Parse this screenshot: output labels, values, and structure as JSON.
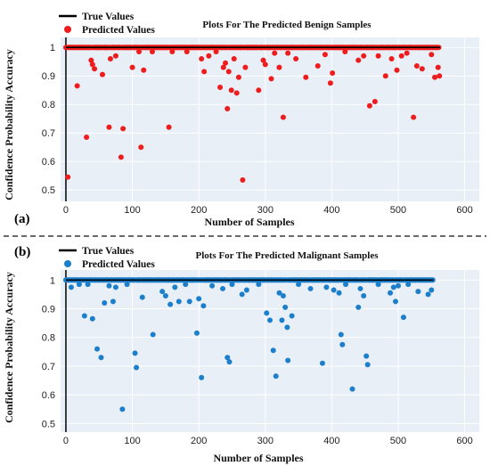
{
  "colors": {
    "benign": "#ee1c1c",
    "malignant": "#1b7fcc",
    "true_line": "#000000",
    "plot_bg": "#e9eff7",
    "grid": "#ffffff"
  },
  "chart_data": [
    {
      "type": "scatter",
      "panel_label": "(a)",
      "title": "Plots For The Predicted Benign Samples",
      "xlabel": "Number of Samples",
      "ylabel": "Confidence Probability Accuracy",
      "xlim": [
        -8,
        622
      ],
      "ylim": [
        0.46,
        1.035
      ],
      "xticks": [
        0,
        100,
        200,
        300,
        400,
        500,
        600
      ],
      "yticks": [
        0.5,
        0.6,
        0.7,
        0.8,
        0.9,
        1
      ],
      "ytick_labels": [
        "0.5",
        "0.6",
        "0.7",
        "0.8",
        "0.9",
        "1"
      ],
      "grid": true,
      "legend_position": "top-left",
      "n_samples": 563,
      "series": [
        {
          "name": "True Values",
          "kind": "line",
          "value": 1.0
        },
        {
          "name": "Predicted Values",
          "kind": "scatter",
          "outliers": [
            [
              3,
              0.545
            ],
            [
              17,
              0.865
            ],
            [
              31,
              0.685
            ],
            [
              38,
              0.955
            ],
            [
              40,
              0.94
            ],
            [
              43,
              0.925
            ],
            [
              55,
              0.905
            ],
            [
              65,
              0.72
            ],
            [
              67,
              0.96
            ],
            [
              75,
              0.97
            ],
            [
              83,
              0.615
            ],
            [
              86,
              0.715
            ],
            [
              100,
              0.93
            ],
            [
              110,
              0.985
            ],
            [
              113,
              0.65
            ],
            [
              117,
              0.92
            ],
            [
              130,
              0.985
            ],
            [
              155,
              0.72
            ],
            [
              160,
              0.985
            ],
            [
              182,
              0.985
            ],
            [
              204,
              0.96
            ],
            [
              208,
              0.915
            ],
            [
              215,
              0.97
            ],
            [
              226,
              0.985
            ],
            [
              232,
              0.86
            ],
            [
              237,
              0.93
            ],
            [
              240,
              0.945
            ],
            [
              243,
              0.785
            ],
            [
              245,
              0.915
            ],
            [
              249,
              0.85
            ],
            [
              253,
              0.96
            ],
            [
              257,
              0.84
            ],
            [
              260,
              0.895
            ],
            [
              266,
              0.535
            ],
            [
              270,
              0.93
            ],
            [
              290,
              0.85
            ],
            [
              297,
              0.955
            ],
            [
              300,
              0.94
            ],
            [
              309,
              0.89
            ],
            [
              314,
              0.98
            ],
            [
              321,
              0.93
            ],
            [
              327,
              0.755
            ],
            [
              334,
              0.98
            ],
            [
              346,
              0.96
            ],
            [
              361,
              0.895
            ],
            [
              379,
              0.935
            ],
            [
              390,
              0.975
            ],
            [
              398,
              0.875
            ],
            [
              401,
              0.91
            ],
            [
              420,
              0.985
            ],
            [
              440,
              0.955
            ],
            [
              448,
              0.97
            ],
            [
              457,
              0.795
            ],
            [
              465,
              0.81
            ],
            [
              470,
              0.97
            ],
            [
              481,
              0.9
            ],
            [
              490,
              0.96
            ],
            [
              498,
              0.92
            ],
            [
              505,
              0.97
            ],
            [
              513,
              0.98
            ],
            [
              523,
              0.755
            ],
            [
              528,
              0.935
            ],
            [
              536,
              0.925
            ],
            [
              550,
              0.975
            ],
            [
              555,
              0.895
            ],
            [
              560,
              0.93
            ],
            [
              562,
              0.9
            ]
          ]
        }
      ]
    },
    {
      "type": "scatter",
      "panel_label": "(b)",
      "title": "Plots For The Predicted Malignant Samples",
      "xlabel": "Number of Samples",
      "ylabel": "Confidence Probability Accuracy",
      "xlim": [
        -8,
        622
      ],
      "ylim": [
        0.47,
        1.035
      ],
      "xticks": [
        0,
        100,
        200,
        300,
        400,
        500,
        600
      ],
      "yticks": [
        0.5,
        0.6,
        0.7,
        0.8,
        0.9,
        1
      ],
      "ytick_labels": [
        "0.5",
        "0.6",
        "0.7",
        "0.8",
        "0.9",
        "1"
      ],
      "grid": true,
      "legend_position": "top-left",
      "n_samples": 553,
      "series": [
        {
          "name": "True Values",
          "kind": "line",
          "value": 1.0
        },
        {
          "name": "Predicted Values",
          "kind": "scatter",
          "outliers": [
            [
              8,
              0.975
            ],
            [
              20,
              0.985
            ],
            [
              28,
              0.875
            ],
            [
              33,
              0.985
            ],
            [
              40,
              0.865
            ],
            [
              47,
              0.76
            ],
            [
              53,
              0.73
            ],
            [
              58,
              0.92
            ],
            [
              65,
              0.98
            ],
            [
              71,
              0.925
            ],
            [
              75,
              0.975
            ],
            [
              85,
              0.55
            ],
            [
              92,
              0.985
            ],
            [
              104,
              0.745
            ],
            [
              106,
              0.695
            ],
            [
              115,
              0.94
            ],
            [
              131,
              0.81
            ],
            [
              145,
              0.96
            ],
            [
              150,
              0.945
            ],
            [
              157,
              0.915
            ],
            [
              164,
              0.975
            ],
            [
              170,
              0.925
            ],
            [
              180,
              0.985
            ],
            [
              186,
              0.925
            ],
            [
              197,
              0.815
            ],
            [
              200,
              0.935
            ],
            [
              204,
              0.66
            ],
            [
              207,
              0.91
            ],
            [
              220,
              0.98
            ],
            [
              236,
              0.97
            ],
            [
              243,
              0.73
            ],
            [
              246,
              0.715
            ],
            [
              250,
              0.985
            ],
            [
              265,
              0.95
            ],
            [
              272,
              0.965
            ],
            [
              290,
              0.985
            ],
            [
              302,
              0.885
            ],
            [
              307,
              0.86
            ],
            [
              312,
              0.755
            ],
            [
              316,
              0.665
            ],
            [
              321,
              0.955
            ],
            [
              325,
              0.86
            ],
            [
              327,
              0.945
            ],
            [
              330,
              0.905
            ],
            [
              333,
              0.835
            ],
            [
              334,
              0.72
            ],
            [
              340,
              0.875
            ],
            [
              350,
              0.985
            ],
            [
              368,
              0.97
            ],
            [
              386,
              0.71
            ],
            [
              392,
              0.975
            ],
            [
              403,
              0.965
            ],
            [
              411,
              0.955
            ],
            [
              414,
              0.81
            ],
            [
              416,
              0.775
            ],
            [
              421,
              0.985
            ],
            [
              431,
              0.62
            ],
            [
              440,
              0.905
            ],
            [
              443,
              0.97
            ],
            [
              448,
              0.945
            ],
            [
              452,
              0.735
            ],
            [
              454,
              0.705
            ],
            [
              470,
              0.985
            ],
            [
              488,
              0.955
            ],
            [
              493,
              0.975
            ],
            [
              496,
              0.925
            ],
            [
              500,
              0.98
            ],
            [
              508,
              0.87
            ],
            [
              515,
              0.985
            ],
            [
              530,
              0.96
            ],
            [
              545,
              0.95
            ],
            [
              550,
              0.965
            ]
          ]
        }
      ]
    }
  ]
}
